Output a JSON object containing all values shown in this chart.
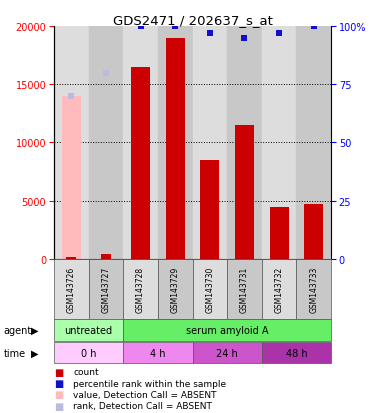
{
  "title": "GDS2471 / 202637_s_at",
  "samples": [
    "GSM143726",
    "GSM143727",
    "GSM143728",
    "GSM143729",
    "GSM143730",
    "GSM143731",
    "GSM143732",
    "GSM143733"
  ],
  "counts": [
    150,
    400,
    16500,
    19000,
    8500,
    11500,
    4500,
    4700
  ],
  "percentile_ranks": [
    null,
    null,
    100,
    100,
    97,
    95,
    97,
    100
  ],
  "absent_value": [
    14000,
    null,
    null,
    null,
    null,
    null,
    null,
    null
  ],
  "absent_rank": [
    70,
    80,
    null,
    null,
    null,
    null,
    null,
    null
  ],
  "detection_absent": [
    true,
    true,
    false,
    false,
    false,
    false,
    false,
    false
  ],
  "ylim_left": [
    0,
    20000
  ],
  "ylim_right": [
    0,
    100
  ],
  "yticks_left": [
    0,
    5000,
    10000,
    15000,
    20000
  ],
  "yticks_right": [
    0,
    25,
    50,
    75,
    100
  ],
  "bar_color": "#cc0000",
  "rank_color": "#1111cc",
  "absent_value_color": "#ffbbbb",
  "absent_rank_color": "#bbbbdd",
  "bar_width": 0.55,
  "col_colors": [
    "#dddddd",
    "#c8c8c8"
  ],
  "agent_labels": [
    {
      "text": "untreated",
      "start": 0,
      "end": 2,
      "color": "#aaffaa"
    },
    {
      "text": "serum amyloid A",
      "start": 2,
      "end": 8,
      "color": "#66ee66"
    }
  ],
  "time_colors": [
    "#ffccff",
    "#ee88ee",
    "#cc55cc",
    "#aa33aa"
  ],
  "time_labels": [
    {
      "text": "0 h",
      "start": 0,
      "end": 2
    },
    {
      "text": "4 h",
      "start": 2,
      "end": 4
    },
    {
      "text": "24 h",
      "start": 4,
      "end": 6
    },
    {
      "text": "48 h",
      "start": 6,
      "end": 8
    }
  ],
  "legend_items": [
    {
      "label": "count",
      "color": "#cc0000"
    },
    {
      "label": "percentile rank within the sample",
      "color": "#1111cc"
    },
    {
      "label": "value, Detection Call = ABSENT",
      "color": "#ffbbbb"
    },
    {
      "label": "rank, Detection Call = ABSENT",
      "color": "#bbbbdd"
    }
  ]
}
